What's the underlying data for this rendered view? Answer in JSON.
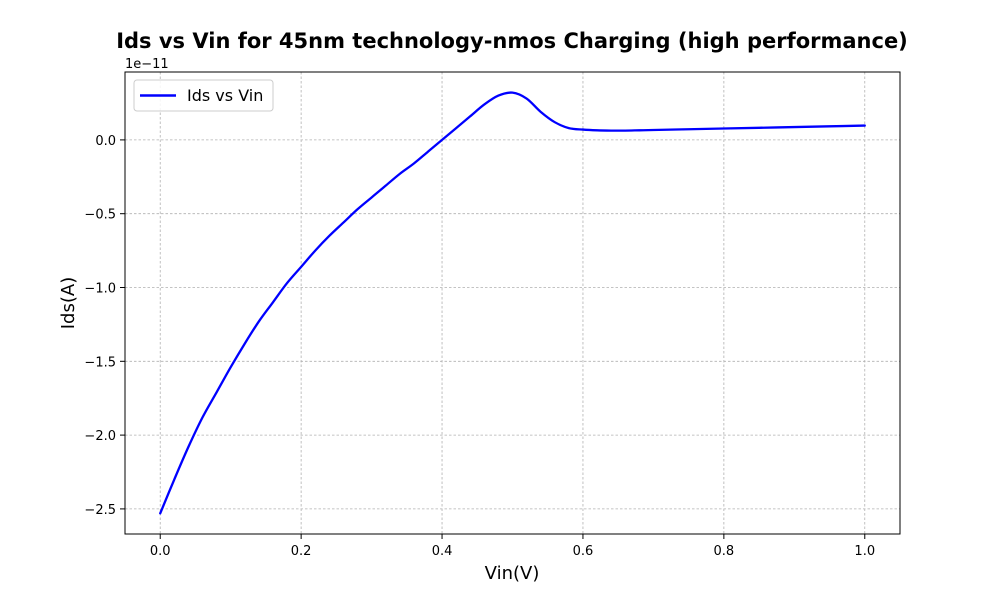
{
  "chart_data": {
    "type": "line",
    "title": "Ids vs Vin for 45nm technology-nmos Charging (high performance)",
    "xlabel": "Vin(V)",
    "ylabel": "Ids(A)",
    "y_offset_label": "1e−11",
    "y_scale_exponent": -11,
    "xlim": [
      -0.05,
      1.05
    ],
    "ylim": [
      -2.67,
      0.46
    ],
    "x_ticks": [
      0.0,
      0.2,
      0.4,
      0.6,
      0.8,
      1.0
    ],
    "x_tick_labels": [
      "0.0",
      "0.2",
      "0.4",
      "0.6",
      "0.8",
      "1.0"
    ],
    "y_ticks": [
      -2.5,
      -2.0,
      -1.5,
      -1.0,
      -0.5,
      0.0
    ],
    "y_tick_labels": [
      "−2.5",
      "−2.0",
      "−1.5",
      "−1.0",
      "−0.5",
      "0.0"
    ],
    "grid": true,
    "legend_position": "top-left",
    "series": [
      {
        "name": "Ids vs Vin",
        "color": "#0000ff",
        "x": [
          0.0,
          0.02,
          0.04,
          0.06,
          0.08,
          0.1,
          0.12,
          0.14,
          0.16,
          0.18,
          0.2,
          0.22,
          0.24,
          0.26,
          0.28,
          0.3,
          0.32,
          0.34,
          0.36,
          0.38,
          0.4,
          0.42,
          0.44,
          0.46,
          0.48,
          0.5,
          0.52,
          0.54,
          0.56,
          0.58,
          0.6,
          0.62,
          0.64,
          0.66,
          0.68,
          0.7,
          0.75,
          0.8,
          0.85,
          0.9,
          0.95,
          1.0
        ],
        "y": [
          -2.53,
          -2.3,
          -2.08,
          -1.88,
          -1.71,
          -1.54,
          -1.38,
          -1.23,
          -1.1,
          -0.97,
          -0.86,
          -0.75,
          -0.65,
          -0.56,
          -0.47,
          -0.39,
          -0.31,
          -0.23,
          -0.16,
          -0.08,
          0.0,
          0.08,
          0.16,
          0.24,
          0.3,
          0.32,
          0.28,
          0.19,
          0.12,
          0.08,
          0.07,
          0.065,
          0.063,
          0.063,
          0.065,
          0.067,
          0.072,
          0.077,
          0.082,
          0.087,
          0.092,
          0.097
        ]
      }
    ]
  }
}
